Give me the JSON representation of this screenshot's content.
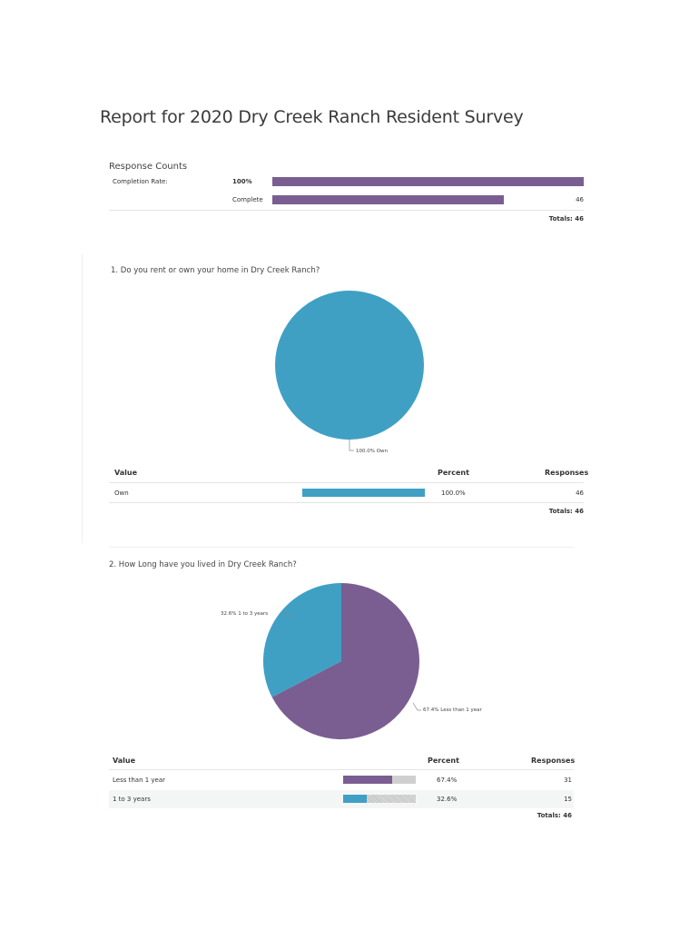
{
  "report": {
    "title": "Report for 2020 Dry Creek Ranch Resident Survey"
  },
  "response_counts": {
    "heading": "Response Counts",
    "completion_label": "Completion Rate:",
    "completion_value": "100%",
    "completion_fraction": 1.0,
    "complete_label": "Complete",
    "complete_value": "46",
    "complete_fraction": 0.75,
    "totals": "Totals: 46"
  },
  "q1": {
    "title": "1. Do you rent or own your home in Dry Creek Ranch?",
    "pie_label": "100.0% Own",
    "table": {
      "headers": {
        "value": "Value",
        "percent": "Percent",
        "responses": "Responses"
      },
      "rows": [
        {
          "value": "Own",
          "percent": "100.0%",
          "responses": "46",
          "fraction": 1.0
        }
      ],
      "totals": "Totals: 46"
    }
  },
  "q2": {
    "title": "2. How Long have you lived in Dry Creek Ranch?",
    "pie_labels": {
      "blue": "32.6% 1 to 3 years",
      "purple": "67.4% Less than 1 year"
    },
    "table": {
      "headers": {
        "value": "Value",
        "percent": "Percent",
        "responses": "Responses"
      },
      "rows": [
        {
          "value": "Less than 1 year",
          "percent": "67.4%",
          "responses": "31",
          "fraction": 0.674
        },
        {
          "value": "1 to 3 years",
          "percent": "32.6%",
          "responses": "15",
          "fraction": 0.326
        }
      ],
      "totals": "Totals: 46"
    }
  },
  "chart_data": [
    {
      "type": "bar",
      "title": "Response Counts",
      "categories": [
        "Completion Rate:",
        "Complete"
      ],
      "values": [
        100,
        46
      ]
    },
    {
      "type": "pie",
      "title": "1. Do you rent or own your home in Dry Creek Ranch?",
      "labels": [
        "Own"
      ],
      "values": [
        100.0
      ],
      "colors": [
        "#3fa0c4"
      ]
    },
    {
      "type": "pie",
      "title": "2. How Long have you lived in Dry Creek Ranch?",
      "labels": [
        "Less than 1 year",
        "1 to 3 years"
      ],
      "values": [
        67.4,
        32.6
      ],
      "colors": [
        "#7a5e91",
        "#3fa0c4"
      ]
    }
  ],
  "colors": {
    "purple": "#7a5e91",
    "blue": "#3fa0c4"
  }
}
